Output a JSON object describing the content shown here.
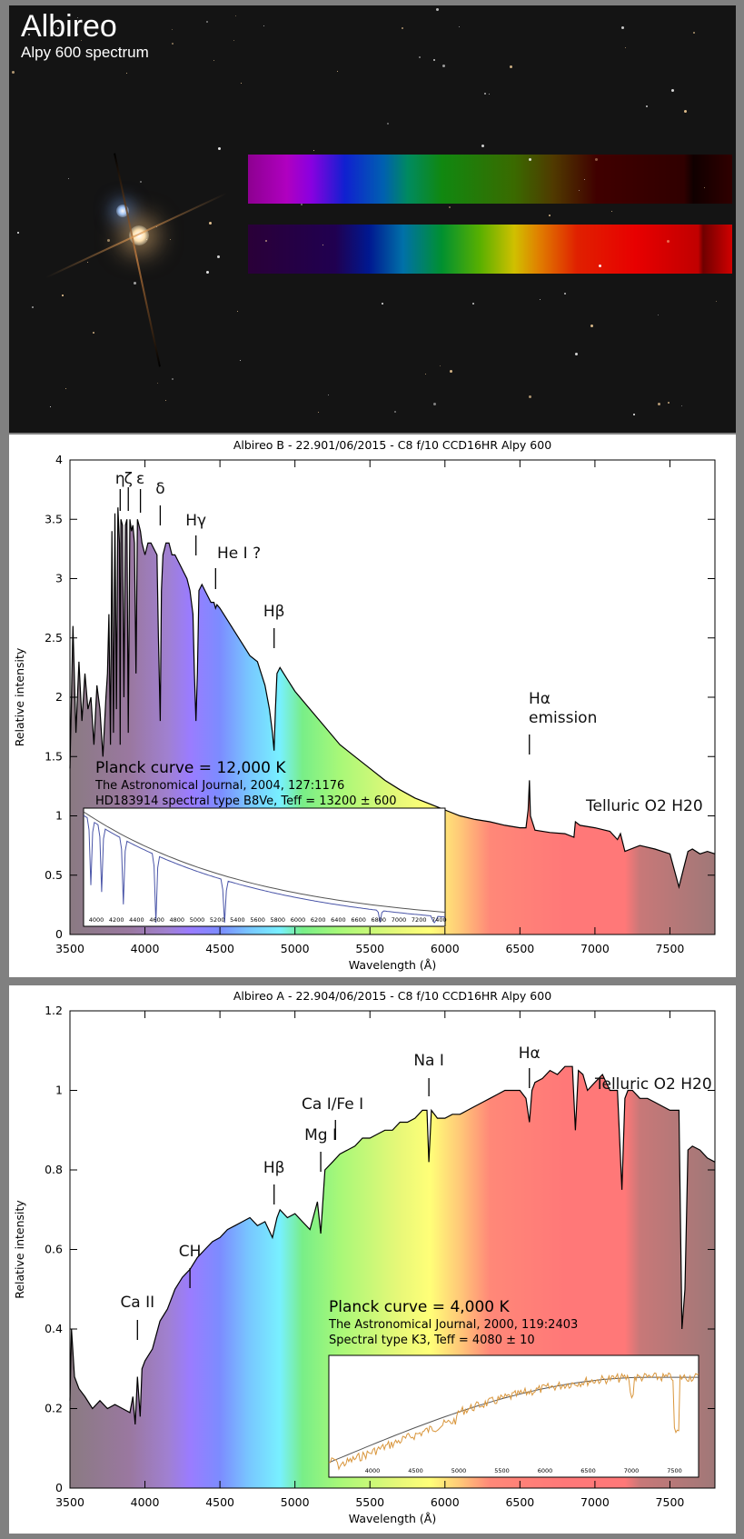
{
  "header": {
    "title": "Albireo",
    "subtitle": "Alpy 600 spectrum"
  },
  "photo": {
    "description": "Albireo double star with two dispersed spectra",
    "spectrum_strips": [
      "Albireo B spectrum strip",
      "Albireo A spectrum strip"
    ]
  },
  "colors": {
    "frame": "#808080",
    "photo_bg": "#141414",
    "curve": "#000000",
    "inset_b_curve": "#4a55a8",
    "inset_a_curve": "#d9963c",
    "planck_curve": "#555555"
  },
  "chart_data": [
    {
      "type": "area",
      "title": "Albireo B - 22.901/06/2015 - C8 f/10 CCD16HR Alpy 600",
      "xlabel": "Wavelength (Å)",
      "ylabel": "Relative intensity",
      "xlim": [
        3500,
        7800
      ],
      "ylim": [
        0,
        4
      ],
      "xticks": [
        "3500",
        "4000",
        "4500",
        "5000",
        "5500",
        "6000",
        "6500",
        "7000",
        "7500"
      ],
      "yticks": [
        "0",
        "0.5",
        "1",
        "1.5",
        "2",
        "2.5",
        "3",
        "3.5",
        "4"
      ],
      "fill": "visible-spectrum gradient",
      "x": [
        3500,
        3520,
        3540,
        3560,
        3580,
        3600,
        3620,
        3640,
        3660,
        3680,
        3700,
        3720,
        3740,
        3750,
        3760,
        3770,
        3780,
        3790,
        3800,
        3810,
        3820,
        3830,
        3835,
        3840,
        3850,
        3860,
        3870,
        3880,
        3889,
        3900,
        3910,
        3920,
        3930,
        3940,
        3950,
        3960,
        3970,
        3980,
        4000,
        4020,
        4040,
        4060,
        4080,
        4090,
        4102,
        4110,
        4120,
        4140,
        4160,
        4180,
        4200,
        4220,
        4240,
        4260,
        4280,
        4300,
        4320,
        4330,
        4340,
        4350,
        4360,
        4380,
        4400,
        4420,
        4440,
        4460,
        4471,
        4480,
        4500,
        4550,
        4600,
        4650,
        4700,
        4750,
        4800,
        4830,
        4850,
        4861,
        4870,
        4880,
        4900,
        4950,
        5000,
        5100,
        5200,
        5300,
        5400,
        5500,
        5600,
        5700,
        5800,
        5900,
        6000,
        6100,
        6200,
        6300,
        6400,
        6500,
        6540,
        6555,
        6563,
        6570,
        6600,
        6700,
        6800,
        6860,
        6870,
        6900,
        7000,
        7100,
        7150,
        7170,
        7200,
        7300,
        7400,
        7500,
        7560,
        7590,
        7620,
        7650,
        7700,
        7750,
        7800
      ],
      "y": [
        1.4,
        2.6,
        1.7,
        2.3,
        1.8,
        2.2,
        1.9,
        2.0,
        1.6,
        2.1,
        1.9,
        1.5,
        2.0,
        2.2,
        2.7,
        1.6,
        3.4,
        1.7,
        3.55,
        1.9,
        3.6,
        3.3,
        1.6,
        3.5,
        3.45,
        2.0,
        3.45,
        3.5,
        1.7,
        3.5,
        3.4,
        3.45,
        3.3,
        2.2,
        3.5,
        3.45,
        3.4,
        3.3,
        3.2,
        3.3,
        3.3,
        3.25,
        3.2,
        2.5,
        1.8,
        2.9,
        3.2,
        3.3,
        3.3,
        3.2,
        3.2,
        3.15,
        3.1,
        3.05,
        3.0,
        2.9,
        2.7,
        2.2,
        1.8,
        2.2,
        2.9,
        2.95,
        2.9,
        2.85,
        2.8,
        2.8,
        2.75,
        2.78,
        2.75,
        2.65,
        2.55,
        2.45,
        2.35,
        2.3,
        2.1,
        1.9,
        1.7,
        1.55,
        1.9,
        2.2,
        2.25,
        2.15,
        2.05,
        1.9,
        1.75,
        1.6,
        1.5,
        1.4,
        1.3,
        1.22,
        1.15,
        1.1,
        1.05,
        1.0,
        0.97,
        0.95,
        0.92,
        0.9,
        0.9,
        1.05,
        1.3,
        1.0,
        0.88,
        0.86,
        0.85,
        0.82,
        0.95,
        0.92,
        0.9,
        0.87,
        0.8,
        0.85,
        0.7,
        0.75,
        0.72,
        0.68,
        0.4,
        0.55,
        0.7,
        0.72,
        0.68,
        0.7,
        0.68
      ],
      "annotations": [
        {
          "label": "η",
          "x": 3835
        },
        {
          "label": "ζ",
          "x": 3889
        },
        {
          "label": "ε",
          "x": 3970
        },
        {
          "label": "δ",
          "x": 4102
        },
        {
          "label": "Hγ",
          "x": 4340
        },
        {
          "label": "He I ?",
          "x": 4471
        },
        {
          "label": "Hβ",
          "x": 4861
        },
        {
          "label": "Hα\nemission",
          "x": 6563
        },
        {
          "label": "Telluric O2 H20",
          "x": 6900
        }
      ],
      "notes": [
        "Planck curve = 12,000 K",
        "The Astronomical Journal, 2004, 127:1176",
        "HD183914 spectral type B8Ve, Teff = 13200 ± 600"
      ],
      "inset": {
        "xticks": [
          "4000",
          "4200",
          "4400",
          "4600",
          "4800",
          "5000",
          "5200",
          "5400",
          "5600",
          "5800",
          "6000",
          "6200",
          "6400",
          "6600",
          "6800",
          "7000",
          "7200",
          "7400"
        ],
        "series": [
          "reference spectrum",
          "Planck curve"
        ]
      }
    },
    {
      "type": "area",
      "title": "Albireo A - 22.904/06/2015 - C8 f/10 CCD16HR Alpy 600",
      "xlabel": "Wavelength (Å)",
      "ylabel": "Relative intensity",
      "xlim": [
        3500,
        7800
      ],
      "ylim": [
        0,
        1.2
      ],
      "xticks": [
        "3500",
        "4000",
        "4500",
        "5000",
        "5500",
        "6000",
        "6500",
        "7000",
        "7500"
      ],
      "yticks": [
        "0",
        "0.2",
        "0.4",
        "0.6",
        "0.8",
        "1",
        "1.2"
      ],
      "fill": "visible-spectrum gradient",
      "x": [
        3500,
        3510,
        3530,
        3560,
        3600,
        3650,
        3700,
        3750,
        3800,
        3850,
        3900,
        3920,
        3935,
        3950,
        3968,
        3980,
        4000,
        4050,
        4100,
        4150,
        4200,
        4250,
        4300,
        4350,
        4400,
        4450,
        4500,
        4550,
        4600,
        4650,
        4700,
        4750,
        4800,
        4850,
        4880,
        4900,
        4950,
        5000,
        5050,
        5100,
        5150,
        5172,
        5200,
        5250,
        5300,
        5350,
        5400,
        5450,
        5500,
        5550,
        5600,
        5650,
        5700,
        5750,
        5800,
        5850,
        5880,
        5893,
        5910,
        5950,
        6000,
        6050,
        6100,
        6150,
        6200,
        6250,
        6300,
        6350,
        6400,
        6450,
        6500,
        6540,
        6563,
        6580,
        6600,
        6650,
        6700,
        6750,
        6800,
        6850,
        6870,
        6890,
        6920,
        6950,
        7000,
        7050,
        7100,
        7150,
        7180,
        7200,
        7220,
        7250,
        7300,
        7350,
        7400,
        7450,
        7500,
        7560,
        7580,
        7600,
        7620,
        7650,
        7700,
        7750,
        7800
      ],
      "y": [
        0.22,
        0.4,
        0.28,
        0.25,
        0.23,
        0.2,
        0.22,
        0.2,
        0.21,
        0.2,
        0.19,
        0.23,
        0.16,
        0.28,
        0.18,
        0.3,
        0.32,
        0.35,
        0.42,
        0.45,
        0.5,
        0.53,
        0.55,
        0.58,
        0.6,
        0.62,
        0.63,
        0.65,
        0.66,
        0.67,
        0.68,
        0.66,
        0.67,
        0.63,
        0.68,
        0.7,
        0.68,
        0.69,
        0.67,
        0.65,
        0.72,
        0.64,
        0.8,
        0.82,
        0.84,
        0.85,
        0.86,
        0.88,
        0.88,
        0.89,
        0.9,
        0.9,
        0.92,
        0.92,
        0.93,
        0.95,
        0.95,
        0.82,
        0.95,
        0.93,
        0.93,
        0.94,
        0.94,
        0.95,
        0.96,
        0.97,
        0.98,
        0.99,
        1.0,
        1.0,
        1.0,
        0.98,
        0.92,
        1.0,
        1.02,
        1.03,
        1.05,
        1.04,
        1.06,
        1.06,
        0.9,
        1.05,
        1.04,
        1.0,
        1.02,
        1.04,
        1.0,
        1.0,
        0.75,
        0.98,
        1.0,
        1.0,
        0.98,
        0.98,
        0.97,
        0.96,
        0.95,
        0.95,
        0.4,
        0.5,
        0.85,
        0.86,
        0.85,
        0.83,
        0.82
      ],
      "annotations": [
        {
          "label": "Ca II",
          "x": 3950
        },
        {
          "label": "CH",
          "x": 4300
        },
        {
          "label": "Hβ",
          "x": 4861
        },
        {
          "label": "Mg I",
          "x": 5172
        },
        {
          "label": "Ca I/Fe I",
          "x": 5270
        },
        {
          "label": "Na I",
          "x": 5893
        },
        {
          "label": "Hα",
          "x": 6563
        },
        {
          "label": "Telluric O2 H20",
          "x": 6900
        }
      ],
      "notes": [
        "Planck curve = 4,000 K",
        "The Astronomical Journal, 2000, 119:2403",
        "Spectral type K3, Teff = 4080 ± 10"
      ],
      "inset": {
        "xticks": [
          "4000",
          "4500",
          "5000",
          "5500",
          "6000",
          "6500",
          "7000",
          "7500"
        ],
        "series": [
          "reference spectrum",
          "Planck curve"
        ]
      }
    }
  ]
}
